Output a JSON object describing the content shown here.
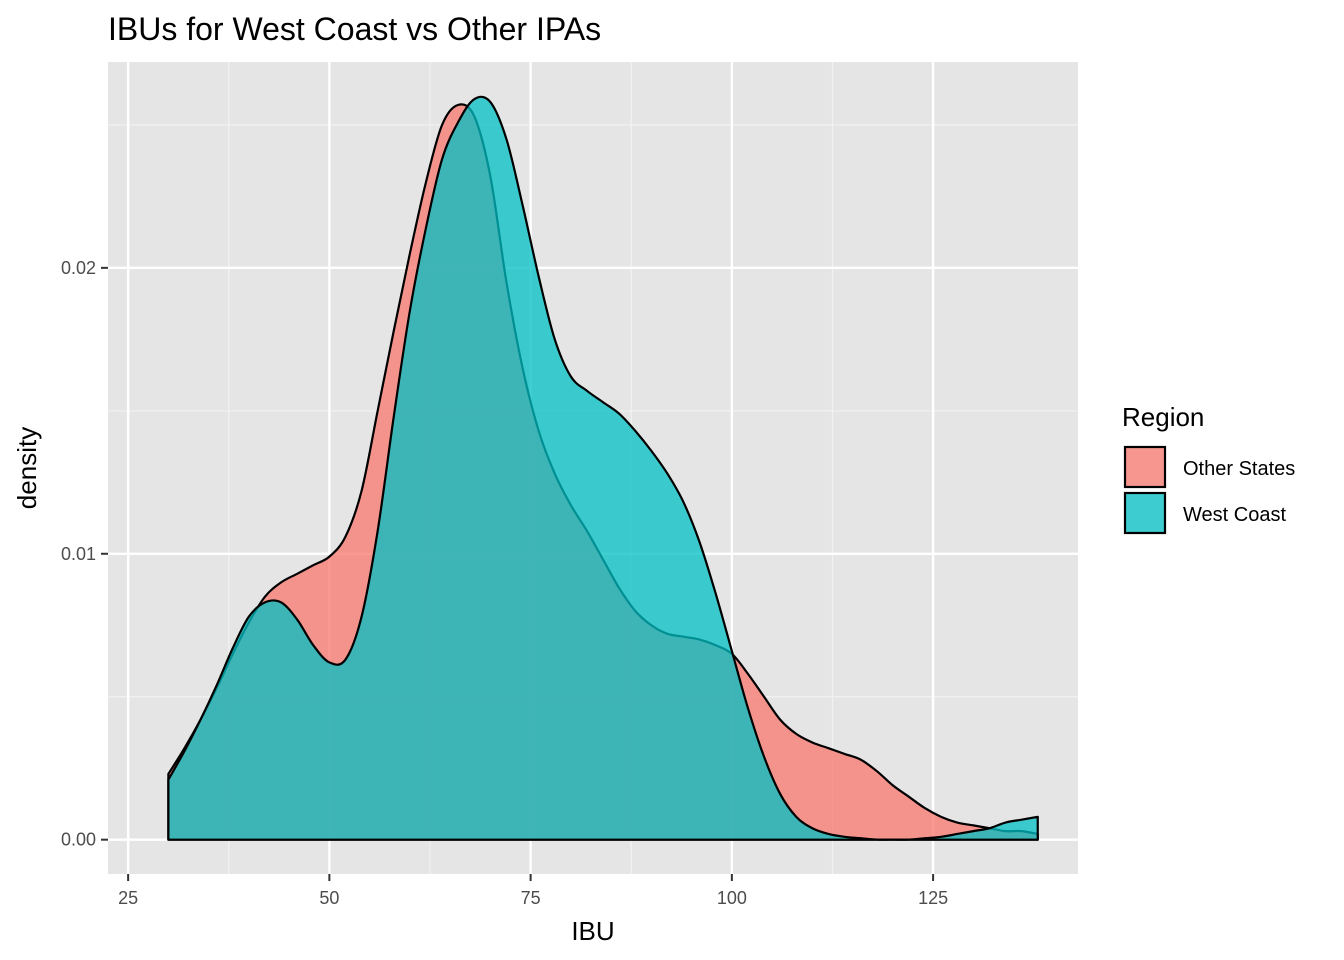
{
  "chart_data": {
    "type": "area",
    "title": "IBUs for West Coast vs Other IPAs",
    "xlabel": "IBU",
    "ylabel": "density",
    "xlim": [
      22.5,
      143
    ],
    "ylim": [
      -0.0012,
      0.0272
    ],
    "x_ticks": [
      "25",
      "50",
      "75",
      "100",
      "125"
    ],
    "x_tick_values": [
      25,
      50,
      75,
      100,
      125
    ],
    "y_ticks": [
      "0.00",
      "0.01",
      "0.02"
    ],
    "y_tick_values": [
      0.0,
      0.01,
      0.02
    ],
    "grid": true,
    "legend": {
      "title": "Region",
      "position": "right"
    },
    "series": [
      {
        "name": "Other States",
        "color": "#F8766D",
        "x": [
          30,
          32,
          34,
          36,
          38,
          40,
          42,
          44,
          46,
          48,
          50,
          52,
          54,
          56,
          58,
          60,
          62,
          64,
          66,
          68,
          70,
          72,
          74,
          76,
          78,
          80,
          82,
          84,
          86,
          88,
          90,
          92,
          94,
          96,
          98,
          100,
          102,
          104,
          106,
          108,
          110,
          112,
          114,
          116,
          118,
          120,
          122,
          124,
          126,
          128,
          130,
          132,
          134,
          136,
          138
        ],
        "y": [
          0.0023,
          0.0032,
          0.0042,
          0.0053,
          0.0065,
          0.0076,
          0.0085,
          0.009,
          0.0093,
          0.0096,
          0.0099,
          0.0106,
          0.0122,
          0.015,
          0.0178,
          0.0205,
          0.023,
          0.025,
          0.0257,
          0.0253,
          0.0232,
          0.0195,
          0.0165,
          0.0143,
          0.0128,
          0.0117,
          0.0108,
          0.0098,
          0.0088,
          0.008,
          0.0075,
          0.0072,
          0.0071,
          0.007,
          0.0068,
          0.0065,
          0.0058,
          0.005,
          0.0042,
          0.0037,
          0.0034,
          0.0032,
          0.003,
          0.0028,
          0.0024,
          0.0019,
          0.0015,
          0.0011,
          0.0008,
          0.0006,
          0.0005,
          0.0004,
          0.0003,
          0.0003,
          0.0002
        ]
      },
      {
        "name": "West Coast",
        "color": "#00BFC4",
        "x": [
          30,
          32,
          34,
          36,
          38,
          40,
          42,
          44,
          46,
          48,
          50,
          52,
          54,
          56,
          58,
          60,
          62,
          64,
          66,
          68,
          70,
          72,
          74,
          76,
          78,
          80,
          82,
          84,
          86,
          88,
          90,
          92,
          94,
          96,
          98,
          100,
          102,
          104,
          106,
          108,
          110,
          112,
          114,
          116,
          118,
          120,
          122,
          124,
          126,
          128,
          130,
          132,
          134,
          136,
          138
        ],
        "y": [
          0.0021,
          0.0031,
          0.0042,
          0.0054,
          0.0067,
          0.0078,
          0.0083,
          0.0083,
          0.0077,
          0.0068,
          0.0062,
          0.0063,
          0.0078,
          0.0108,
          0.0148,
          0.0185,
          0.0214,
          0.0238,
          0.0251,
          0.0259,
          0.0258,
          0.0245,
          0.0222,
          0.0197,
          0.0175,
          0.0162,
          0.0157,
          0.0153,
          0.0149,
          0.0143,
          0.0136,
          0.0128,
          0.0118,
          0.0104,
          0.0086,
          0.0066,
          0.0046,
          0.0029,
          0.0016,
          0.0008,
          0.0004,
          0.0002,
          0.0001,
          5e-05,
          0.0,
          0.0,
          0.0,
          5e-05,
          0.0001,
          0.0002,
          0.0003,
          0.0004,
          0.0006,
          0.0007,
          0.0008
        ]
      }
    ]
  }
}
